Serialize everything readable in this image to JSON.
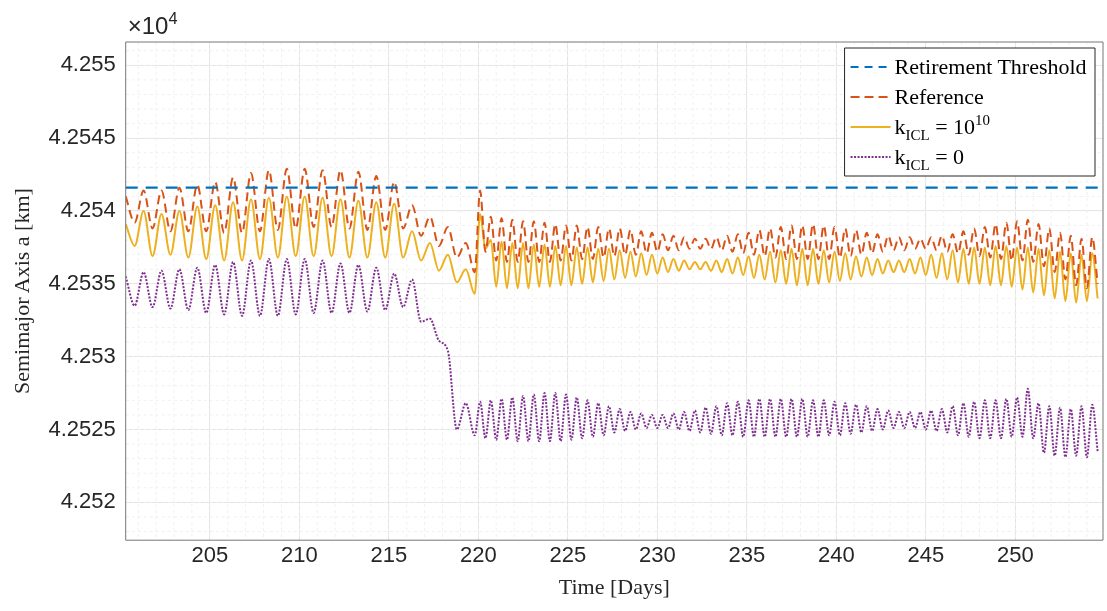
{
  "chart_data": {
    "type": "line",
    "xlabel": "Time [Days]",
    "ylabel": "Semimajor Axis a [km]",
    "xlim": [
      200.3,
      254.9
    ],
    "xticks": [
      205,
      210,
      215,
      220,
      225,
      230,
      235,
      240,
      245,
      250
    ],
    "ylim": [
      4.25174,
      4.25516
    ],
    "yticks": [
      4.252,
      4.2525,
      4.253,
      4.2535,
      4.254,
      4.2545,
      4.255
    ],
    "grid": true,
    "legend": "top right",
    "annotations": [
      "×10$^{4}$"
    ],
    "ref_lines": [
      {
        "axis": "y",
        "value": 4.25416,
        "label": "Retirement Threshold",
        "color": "#0072bd",
        "line_style": "dashed"
      }
    ],
    "x": [
      200.3,
      200.8,
      201.3,
      201.8,
      202.3,
      202.8,
      203.3,
      203.8,
      204.3,
      204.8,
      205.3,
      205.8,
      206.3,
      206.8,
      207.3,
      207.8,
      208.3,
      208.8,
      209.3,
      209.8,
      210.3,
      210.8,
      211.3,
      211.8,
      212.3,
      212.8,
      213.3,
      213.8,
      214.3,
      214.8,
      215.3,
      215.8,
      216.3,
      216.8,
      217.3,
      217.8,
      218.3,
      218.8,
      219.3,
      219.8,
      220.1,
      220.4,
      220.7,
      221.0,
      221.3,
      221.6,
      221.9,
      222.2,
      222.5,
      222.8,
      223.1,
      223.4,
      223.7,
      224.0,
      224.3,
      224.6,
      224.9,
      225.2,
      225.5,
      225.8,
      226.1,
      226.4,
      226.7,
      227.0,
      227.3,
      227.6,
      227.9,
      228.2,
      228.5,
      228.8,
      229.1,
      229.4,
      229.7,
      230.0,
      230.3,
      230.6,
      230.9,
      231.2,
      231.5,
      231.8,
      232.1,
      232.4,
      232.7,
      233.0,
      233.3,
      233.6,
      233.9,
      234.2,
      234.5,
      234.8,
      235.1,
      235.4,
      235.7,
      236.0,
      236.3,
      236.6,
      236.9,
      237.2,
      237.5,
      237.8,
      238.1,
      238.4,
      238.7,
      239.0,
      239.3,
      239.6,
      239.9,
      240.2,
      240.5,
      240.8,
      241.1,
      241.4,
      241.7,
      242.0,
      242.3,
      242.6,
      242.9,
      243.2,
      243.5,
      243.8,
      244.1,
      244.4,
      244.7,
      245.0,
      245.3,
      245.6,
      245.9,
      246.2,
      246.5,
      246.8,
      247.1,
      247.4,
      247.7,
      248.0,
      248.3,
      248.6,
      248.9,
      249.2,
      249.5,
      249.8,
      250.1,
      250.4,
      250.7,
      251.0,
      251.3,
      251.6,
      251.9,
      252.2,
      252.5,
      252.8,
      253.1,
      253.4,
      253.7,
      254.0,
      254.3,
      254.6
    ],
    "series": [
      {
        "name": "Reference",
        "color": "#d95319",
        "line_style": "dashed",
        "values": [
          4.2541,
          4.25392,
          4.25414,
          4.25388,
          4.25414,
          4.25386,
          4.25416,
          4.25386,
          4.25418,
          4.25386,
          4.2542,
          4.25385,
          4.25423,
          4.25385,
          4.25426,
          4.25386,
          4.25428,
          4.25387,
          4.25429,
          4.25388,
          4.25429,
          4.25389,
          4.25428,
          4.25389,
          4.25428,
          4.25388,
          4.25427,
          4.25387,
          4.25424,
          4.25387,
          4.2542,
          4.25388,
          4.25404,
          4.25383,
          4.25396,
          4.25376,
          4.25389,
          4.25368,
          4.25378,
          4.25358,
          4.25414,
          4.25372,
          4.25396,
          4.25366,
          4.25395,
          4.25365,
          4.25394,
          4.25365,
          4.25393,
          4.25365,
          4.25393,
          4.25365,
          4.25392,
          4.25365,
          4.25391,
          4.25366,
          4.2539,
          4.25366,
          4.2539,
          4.25367,
          4.25389,
          4.25367,
          4.25389,
          4.25368,
          4.25388,
          4.25369,
          4.25388,
          4.2537,
          4.25387,
          4.2537,
          4.25386,
          4.25371,
          4.25385,
          4.25372,
          4.25384,
          4.25373,
          4.25383,
          4.25373,
          4.25382,
          4.25374,
          4.25381,
          4.25374,
          4.25381,
          4.25374,
          4.25382,
          4.25373,
          4.25383,
          4.25372,
          4.25384,
          4.25371,
          4.25385,
          4.2537,
          4.25387,
          4.25369,
          4.25388,
          4.25368,
          4.25389,
          4.25367,
          4.2539,
          4.25367,
          4.2539,
          4.25367,
          4.25391,
          4.25367,
          4.2539,
          4.25367,
          4.25389,
          4.25368,
          4.25388,
          4.25369,
          4.25387,
          4.2537,
          4.25385,
          4.25371,
          4.25384,
          4.25372,
          4.25383,
          4.25373,
          4.25382,
          4.25373,
          4.25382,
          4.25374,
          4.25381,
          4.25374,
          4.25382,
          4.25373,
          4.25383,
          4.25372,
          4.25384,
          4.25371,
          4.25386,
          4.2537,
          4.25388,
          4.25369,
          4.25389,
          4.25368,
          4.25391,
          4.25367,
          4.25392,
          4.25366,
          4.25393,
          4.25366,
          4.25394,
          4.25365,
          4.25391,
          4.25362,
          4.25388,
          4.25358,
          4.25385,
          4.25353,
          4.25383,
          4.25349,
          4.25381,
          4.25347,
          4.25382,
          4.2535
        ]
      },
      {
        "name": "k$_{ICL}$ = 10$^{10}$",
        "color": "#edb120",
        "line_style": "solid",
        "values": [
          4.25391,
          4.25376,
          4.254,
          4.25369,
          4.25398,
          4.2537,
          4.254,
          4.25368,
          4.25403,
          4.25367,
          4.25404,
          4.25366,
          4.25406,
          4.25366,
          4.25408,
          4.25367,
          4.25409,
          4.25368,
          4.2541,
          4.25369,
          4.2541,
          4.25369,
          4.25409,
          4.25369,
          4.25408,
          4.25368,
          4.25407,
          4.25368,
          4.25406,
          4.25368,
          4.25405,
          4.25368,
          4.25386,
          4.25366,
          4.25378,
          4.25359,
          4.2537,
          4.25351,
          4.2536,
          4.25343,
          4.25398,
          4.25374,
          4.2538,
          4.25348,
          4.25379,
          4.25347,
          4.25378,
          4.25347,
          4.25378,
          4.25347,
          4.25377,
          4.25348,
          4.25377,
          4.25348,
          4.25376,
          4.25349,
          4.25376,
          4.25349,
          4.25375,
          4.2535,
          4.25375,
          4.25351,
          4.25374,
          4.25352,
          4.25374,
          4.25353,
          4.25373,
          4.25354,
          4.25372,
          4.25355,
          4.25371,
          4.25356,
          4.2537,
          4.25357,
          4.25368,
          4.25358,
          4.25367,
          4.25359,
          4.25366,
          4.2536,
          4.25365,
          4.2536,
          4.25365,
          4.25359,
          4.25366,
          4.25358,
          4.25367,
          4.25357,
          4.25368,
          4.25356,
          4.25369,
          4.25354,
          4.2537,
          4.25353,
          4.25372,
          4.25351,
          4.25373,
          4.2535,
          4.25374,
          4.25349,
          4.25374,
          4.25349,
          4.25374,
          4.2535,
          4.25373,
          4.25351,
          4.25372,
          4.25352,
          4.25371,
          4.25353,
          4.25369,
          4.25355,
          4.25368,
          4.25356,
          4.25367,
          4.25357,
          4.25366,
          4.25358,
          4.25366,
          4.25358,
          4.25367,
          4.25357,
          4.25368,
          4.25356,
          4.2537,
          4.25354,
          4.25371,
          4.25353,
          4.25373,
          4.25351,
          4.25374,
          4.2535,
          4.25375,
          4.2535,
          4.25375,
          4.25349,
          4.25376,
          4.25349,
          4.25376,
          4.25348,
          4.25375,
          4.25346,
          4.25375,
          4.25344,
          4.25374,
          4.25342,
          4.25373,
          4.2534,
          4.25372,
          4.25338,
          4.25371,
          4.25337,
          4.2537,
          4.25338,
          4.25371,
          4.2534
        ]
      },
      {
        "name": "k$_{ICL}$ = 0",
        "color": "#7e2f8e",
        "line_style": "dotted",
        "values": [
          4.25355,
          4.25335,
          4.25358,
          4.25334,
          4.25359,
          4.25333,
          4.2536,
          4.25332,
          4.25361,
          4.2533,
          4.25363,
          4.25329,
          4.25365,
          4.25328,
          4.25366,
          4.25328,
          4.25367,
          4.25328,
          4.25367,
          4.25329,
          4.25367,
          4.2533,
          4.25366,
          4.2533,
          4.25364,
          4.2533,
          4.25363,
          4.25331,
          4.25361,
          4.25332,
          4.25357,
          4.25334,
          4.25353,
          4.25324,
          4.25326,
          4.25311,
          4.25304,
          4.2525,
          4.25268,
          4.25246,
          4.25269,
          4.25244,
          4.2527,
          4.25243,
          4.25271,
          4.25243,
          4.25272,
          4.25242,
          4.25273,
          4.25242,
          4.25274,
          4.25242,
          4.25275,
          4.25242,
          4.25275,
          4.25242,
          4.25274,
          4.25243,
          4.25272,
          4.25244,
          4.2527,
          4.25245,
          4.25268,
          4.25246,
          4.25266,
          4.25248,
          4.25264,
          4.25249,
          4.25262,
          4.2525,
          4.25261,
          4.25251,
          4.2526,
          4.25251,
          4.2526,
          4.25251,
          4.25261,
          4.2525,
          4.25262,
          4.25249,
          4.25263,
          4.25248,
          4.25265,
          4.25247,
          4.25266,
          4.25246,
          4.25268,
          4.25246,
          4.25269,
          4.25245,
          4.2527,
          4.25245,
          4.25271,
          4.25245,
          4.25271,
          4.25245,
          4.25271,
          4.25245,
          4.25271,
          4.25245,
          4.25271,
          4.25245,
          4.2527,
          4.25245,
          4.2527,
          4.25246,
          4.25269,
          4.25246,
          4.25268,
          4.25247,
          4.25267,
          4.25248,
          4.25266,
          4.25249,
          4.25264,
          4.2525,
          4.25263,
          4.25251,
          4.25262,
          4.25251,
          4.25262,
          4.25251,
          4.25262,
          4.2525,
          4.25263,
          4.25249,
          4.25264,
          4.25248,
          4.25266,
          4.25246,
          4.25268,
          4.25245,
          4.25269,
          4.25244,
          4.2527,
          4.25244,
          4.2527,
          4.25244,
          4.25271,
          4.25245,
          4.25272,
          4.25245,
          4.25278,
          4.25244,
          4.25268,
          4.25234,
          4.25266,
          4.25232,
          4.25265,
          4.25231,
          4.25264,
          4.25232,
          4.25266,
          4.25231,
          4.25267,
          4.25235
        ]
      }
    ]
  }
}
